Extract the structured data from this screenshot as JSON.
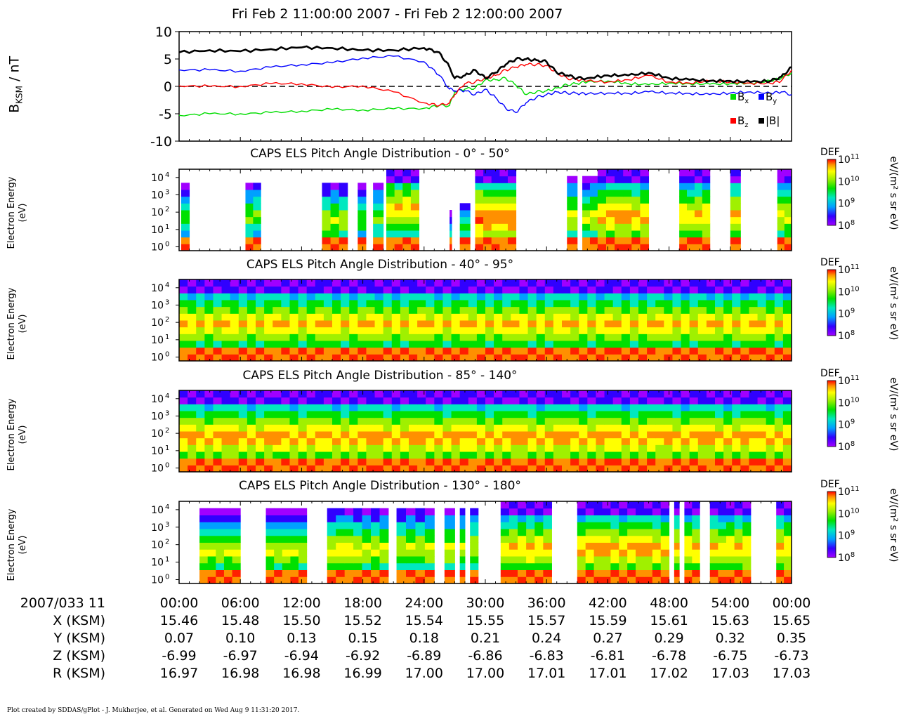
{
  "title": "Fri Feb 2 11:00:00 2007 - Fri Feb 2 12:00:00 2007",
  "footer": "Plot created by SDDAS/gPlot - J. Mukherjee, et al.  Generated on Wed Aug 9 11:31:20 2017.",
  "colors": {
    "bx": "#00dd00",
    "by": "#0000ff",
    "bz": "#ff0000",
    "bmag": "#000000"
  },
  "chart_data": [
    {
      "type": "line",
      "ylabel_main": "B",
      "ylabel_sub": "KSM",
      "ylabel_unit": " / nT",
      "ylim": [
        -10,
        10
      ],
      "yticks": [
        10,
        5,
        0,
        -5,
        -10
      ],
      "xlim_min": [
        0,
        60
      ],
      "legend": {
        "bx": {
          "base": "B",
          "sub": "x"
        },
        "by": {
          "base": "B",
          "sub": "y"
        },
        "bz": {
          "base": "B",
          "sub": "z"
        },
        "bmag": {
          "label": "|B|"
        }
      },
      "x_min": [
        0,
        3,
        6,
        9,
        12,
        15,
        18,
        21,
        24,
        25.5,
        26.5,
        27,
        28,
        29,
        30,
        31,
        32,
        33,
        34,
        35,
        36,
        37,
        38,
        39,
        40,
        42,
        44,
        46,
        48,
        50,
        52,
        54,
        56,
        58,
        59,
        60
      ],
      "series": [
        {
          "key": "bx",
          "values": [
            -5.3,
            -5.0,
            -5.0,
            -4.8,
            -4.5,
            -4.2,
            -4.3,
            -4.1,
            -4.0,
            -3.5,
            -3.5,
            -1.0,
            -0.5,
            -0.3,
            1.2,
            1.2,
            1.5,
            0.2,
            -1.5,
            -1.0,
            -0.8,
            -0.3,
            0.3,
            0.5,
            0.8,
            1.0,
            0.5,
            0.3,
            0.6,
            0.5,
            0.4,
            0.5,
            0.6,
            1.0,
            1.5,
            2.5
          ]
        },
        {
          "key": "by",
          "values": [
            3.0,
            3.0,
            2.8,
            3.5,
            4.0,
            4.3,
            5.2,
            5.5,
            4.5,
            2.0,
            -0.5,
            -0.8,
            -0.8,
            -1.5,
            -0.5,
            -2.0,
            -4.0,
            -4.8,
            -3.0,
            -2.0,
            -1.5,
            -1.0,
            -1.2,
            -1.3,
            -1.4,
            -1.2,
            -1.3,
            -1.0,
            -1.2,
            -1.3,
            -1.5,
            -1.2,
            -1.0,
            -1.3,
            -1.0,
            -1.5
          ]
        },
        {
          "key": "bz",
          "values": [
            0.1,
            0.0,
            0.0,
            0.5,
            0.5,
            -0.2,
            0.1,
            -1.0,
            -3.0,
            -3.5,
            -3.0,
            -1.5,
            0.5,
            0.8,
            1.5,
            2.0,
            3.0,
            3.5,
            4.0,
            4.0,
            3.8,
            2.5,
            1.5,
            1.2,
            1.0,
            0.8,
            1.2,
            2.0,
            0.8,
            0.6,
            1.0,
            0.8,
            0.6,
            0.5,
            1.0,
            3.0
          ]
        },
        {
          "key": "bmag",
          "values": [
            6.2,
            6.6,
            6.4,
            6.8,
            7.1,
            7.0,
            6.6,
            6.6,
            7.0,
            6.2,
            3.5,
            1.5,
            2.0,
            3.0,
            1.5,
            2.5,
            4.0,
            5.0,
            5.0,
            4.8,
            4.5,
            2.5,
            2.0,
            1.5,
            1.5,
            2.0,
            2.0,
            2.5,
            1.5,
            1.2,
            1.0,
            1.0,
            0.8,
            1.0,
            1.8,
            3.5
          ]
        }
      ]
    },
    {
      "type": "heatmap",
      "title": "CAPS ELS Pitch Angle Distribution - 0° - 50°",
      "ylabel_line1": "Electron Energy",
      "ylabel_line2": "(eV)",
      "yaxis": "log",
      "ylim": [
        0.6,
        30000
      ],
      "ytick_exp": [
        0,
        1,
        2,
        3,
        4
      ],
      "cbar_label": "DEF",
      "cbar_unit": "eV/(m² s sr eV)",
      "cbar_exp": [
        8,
        9,
        10,
        11
      ],
      "data_intervals_min": [
        [
          0.2,
          1.0
        ],
        [
          6.5,
          8.0
        ],
        [
          14,
          16.5
        ],
        [
          17.5,
          18.3
        ],
        [
          19,
          20
        ],
        [
          20.3,
          23.5
        ],
        [
          26.5,
          26.7
        ],
        [
          27.5,
          28.5
        ],
        [
          29,
          33
        ],
        [
          38,
          39
        ],
        [
          39.5,
          41
        ],
        [
          41,
          46
        ],
        [
          49,
          52
        ],
        [
          54,
          55
        ],
        [
          58.6,
          60
        ]
      ],
      "band_center_exp": [
        1.8,
        1.8,
        1.5,
        1.6,
        1.6,
        2.2,
        0.0,
        1.0,
        1.7,
        1.7,
        1.7,
        1.8,
        1.8,
        1.8,
        1.8
      ],
      "band_level": [
        0.55,
        0.6,
        0.7,
        0.6,
        0.6,
        0.8,
        0.6,
        0.5,
        0.9,
        0.7,
        0.7,
        0.85,
        0.8,
        0.8,
        0.75
      ]
    },
    {
      "type": "heatmap",
      "title": "CAPS ELS Pitch Angle Distribution - 40° - 95°",
      "ylabel_line1": "Electron Energy",
      "ylabel_line2": "(eV)",
      "yaxis": "log",
      "ylim": [
        0.6,
        30000
      ],
      "ytick_exp": [
        0,
        1,
        2,
        3,
        4
      ],
      "cbar_label": "DEF",
      "cbar_unit": "eV/(m² s sr eV)",
      "cbar_exp": [
        8,
        9,
        10,
        11
      ],
      "data_intervals_min": [
        [
          0,
          60
        ]
      ],
      "band_center_exp": [
        1.9
      ],
      "band_level": [
        0.8
      ]
    },
    {
      "type": "heatmap",
      "title": "CAPS ELS Pitch Angle Distribution - 85° - 140°",
      "ylabel_line1": "Electron Energy",
      "ylabel_line2": "(eV)",
      "yaxis": "log",
      "ylim": [
        0.6,
        30000
      ],
      "ytick_exp": [
        0,
        1,
        2,
        3,
        4
      ],
      "cbar_label": "DEF",
      "cbar_unit": "eV/(m² s sr eV)",
      "cbar_exp": [
        8,
        9,
        10,
        11
      ],
      "data_intervals_min": [
        [
          0,
          60
        ]
      ],
      "band_center_exp": [
        1.8
      ],
      "band_level": [
        0.85
      ]
    },
    {
      "type": "heatmap",
      "title": "CAPS ELS Pitch Angle Distribution - 130° - 180°",
      "ylabel_line1": "Electron Energy",
      "ylabel_line2": "(eV)",
      "yaxis": "log",
      "ylim": [
        0.6,
        30000
      ],
      "ytick_exp": [
        0,
        1,
        2,
        3,
        4
      ],
      "cbar_label": "DEF",
      "cbar_unit": "eV/(m² s sr eV)",
      "cbar_exp": [
        8,
        9,
        10,
        11
      ],
      "data_intervals_min": [
        [
          2,
          6
        ],
        [
          8.5,
          12.5
        ],
        [
          14.5,
          20.5
        ],
        [
          21.3,
          25
        ],
        [
          26,
          27
        ],
        [
          27.5,
          28
        ],
        [
          28.5,
          29.3
        ],
        [
          31.5,
          36.5
        ],
        [
          39,
          48
        ],
        [
          48.5,
          49
        ],
        [
          49.5,
          51
        ],
        [
          52,
          56
        ],
        [
          58.5,
          60
        ]
      ],
      "band_center_exp": [
        1.6,
        1.6,
        1.7,
        1.8,
        1.8,
        1.8,
        1.8,
        1.8,
        1.8,
        1.8,
        1.8,
        1.8,
        1.8
      ],
      "band_level": [
        0.7,
        0.7,
        0.75,
        0.7,
        0.7,
        0.7,
        0.7,
        0.8,
        0.85,
        0.8,
        0.8,
        0.8,
        0.8
      ]
    }
  ],
  "ephemeris": {
    "row_labels": [
      "2007/033 11",
      "X (KSM)",
      "Y (KSM)",
      "Z (KSM)",
      "R (KSM)"
    ],
    "times": [
      "00:00",
      "06:00",
      "12:00",
      "18:00",
      "24:00",
      "30:00",
      "36:00",
      "42:00",
      "48:00",
      "54:00",
      "00:00"
    ],
    "x": [
      "15.46",
      "15.48",
      "15.50",
      "15.52",
      "15.54",
      "15.55",
      "15.57",
      "15.59",
      "15.61",
      "15.63",
      "15.65"
    ],
    "y": [
      "0.07",
      "0.10",
      "0.13",
      "0.15",
      "0.18",
      "0.21",
      "0.24",
      "0.27",
      "0.29",
      "0.32",
      "0.35"
    ],
    "z": [
      "-6.99",
      "-6.97",
      "-6.94",
      "-6.92",
      "-6.89",
      "-6.86",
      "-6.83",
      "-6.81",
      "-6.78",
      "-6.75",
      "-6.73"
    ],
    "r": [
      "16.97",
      "16.98",
      "16.98",
      "16.99",
      "17.00",
      "17.00",
      "17.01",
      "17.01",
      "17.02",
      "17.03",
      "17.03"
    ]
  }
}
